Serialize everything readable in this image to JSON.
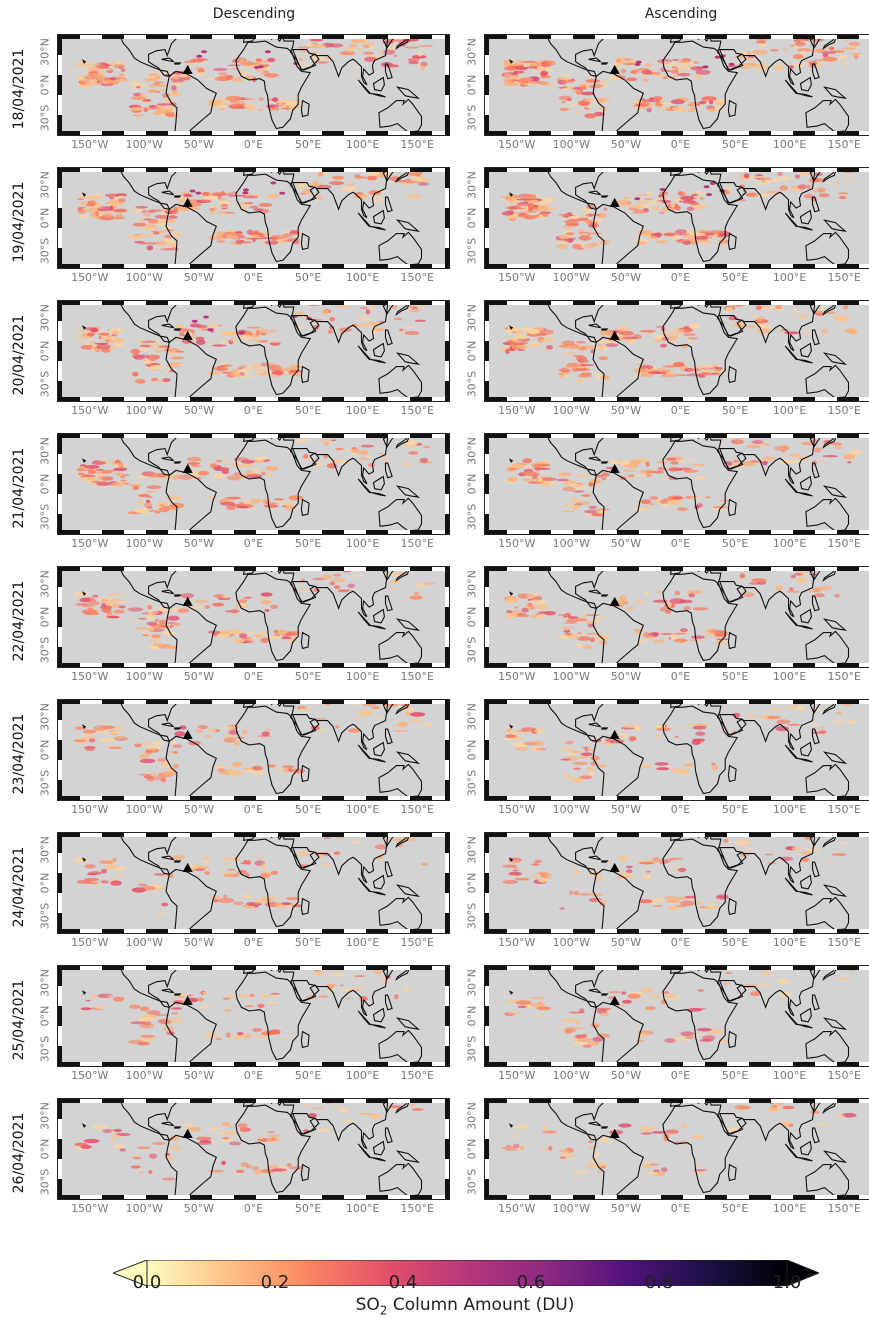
{
  "columns": [
    "Descending",
    "Ascending"
  ],
  "rows": [
    {
      "date": "18/04/2021",
      "desc_level": 1.0,
      "asc_level": 1.0
    },
    {
      "date": "19/04/2021",
      "desc_level": 0.95,
      "asc_level": 0.95
    },
    {
      "date": "20/04/2021",
      "desc_level": 0.85,
      "asc_level": 0.8
    },
    {
      "date": "21/04/2021",
      "desc_level": 0.7,
      "asc_level": 0.65
    },
    {
      "date": "22/04/2021",
      "desc_level": 0.55,
      "asc_level": 0.5
    },
    {
      "date": "23/04/2021",
      "desc_level": 0.45,
      "asc_level": 0.4
    },
    {
      "date": "24/04/2021",
      "desc_level": 0.4,
      "asc_level": 0.35
    },
    {
      "date": "25/04/2021",
      "desc_level": 0.35,
      "asc_level": 0.3
    },
    {
      "date": "26/04/2021",
      "desc_level": 0.3,
      "asc_level": 0.25
    }
  ],
  "lat_labels": [
    "30°N",
    "0°N",
    "30°S"
  ],
  "lon_labels": [
    "150°W",
    "100°W",
    "50°W",
    "0°E",
    "50°E",
    "100°E",
    "150°E"
  ],
  "colorbar": {
    "ticks": [
      "0.0",
      "0.2",
      "0.4",
      "0.6",
      "0.8",
      "1.0"
    ],
    "title_main": "SO",
    "title_sub": "2",
    "title_rest": " Column Amount (DU)",
    "colors": [
      "#fcfdbf",
      "#fec287",
      "#fb8761",
      "#e3506a",
      "#b73779",
      "#8c2981",
      "#51127c",
      "#1d1147",
      "#000004"
    ]
  },
  "colors": {
    "land": "#d3d3d3",
    "coast": "#111111",
    "volcano_marker": "#000000"
  },
  "icons": {
    "volcano": "volcano-marker-icon"
  }
}
